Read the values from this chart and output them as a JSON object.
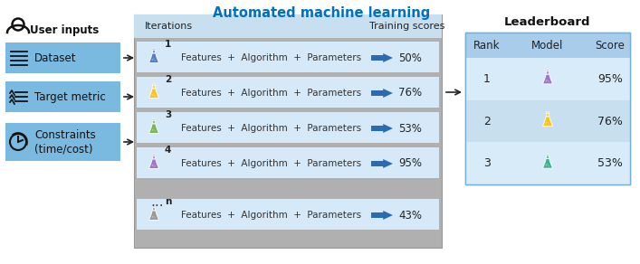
{
  "title": "Automated machine learning",
  "title_color": "#0070C0",
  "bg_color": "#FFFFFF",
  "left_panel_bg": "#7AB9E0",
  "center_panel_bg": "#B0B0B0",
  "center_row_bg": "#D6E9F8",
  "center_header_bg": "#C8DFF0",
  "right_panel_bg": "#C8DFF0",
  "right_header_bg": "#A8CCEA",
  "iterations": [
    {
      "num": "1",
      "score": "50%",
      "flask_color": "#4472C4"
    },
    {
      "num": "2",
      "score": "76%",
      "flask_color": "#FFC000"
    },
    {
      "num": "3",
      "score": "53%",
      "flask_color": "#70AD47"
    },
    {
      "num": "4",
      "score": "95%",
      "flask_color": "#9966CC"
    },
    {
      "num": "n",
      "score": "43%",
      "flask_color": "#909090"
    }
  ],
  "leaderboard": [
    {
      "rank": "1",
      "score": "95%",
      "flask_color": "#9966CC"
    },
    {
      "rank": "2",
      "score": "76%",
      "flask_color": "#FFC000"
    },
    {
      "rank": "3",
      "score": "53%",
      "flask_color": "#2EAA88"
    }
  ],
  "arrow_color": "#2B6CB0",
  "text_color": "#000000"
}
